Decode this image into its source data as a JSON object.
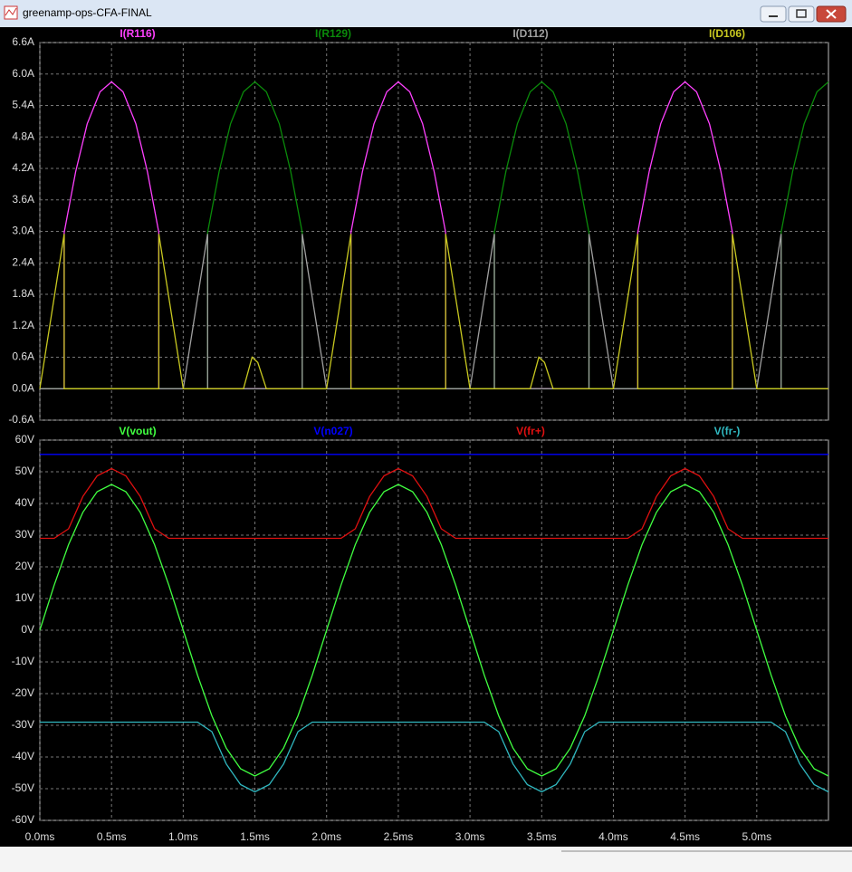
{
  "window": {
    "title": "greenamp-ops-CFA-FINAL"
  },
  "chart_data": [
    {
      "type": "line",
      "xlim": [
        0,
        5.5
      ],
      "ylim": [
        -0.6,
        6.6
      ],
      "yticks": [
        {
          "value": -0.6,
          "label": "-0.6A"
        },
        {
          "value": 0,
          "label": "0.0A"
        },
        {
          "value": 0.6,
          "label": "0.6A"
        },
        {
          "value": 1.2,
          "label": "1.2A"
        },
        {
          "value": 1.8,
          "label": "1.8A"
        },
        {
          "value": 2.4,
          "label": "2.4A"
        },
        {
          "value": 3.0,
          "label": "3.0A"
        },
        {
          "value": 3.6,
          "label": "3.6A"
        },
        {
          "value": 4.2,
          "label": "4.2A"
        },
        {
          "value": 4.8,
          "label": "4.8A"
        },
        {
          "value": 5.4,
          "label": "5.4A"
        },
        {
          "value": 6.0,
          "label": "6.0A"
        },
        {
          "value": 6.6,
          "label": "6.6A"
        }
      ],
      "grid": true,
      "series": [
        {
          "name": "I(R116)",
          "color": "#ff40ff",
          "x": [
            0,
            0.17,
            0.17,
            0.25,
            0.33,
            0.42,
            0.5,
            0.58,
            0.67,
            0.75,
            0.83,
            0.83,
            2.17,
            2.17,
            2.25,
            2.33,
            2.42,
            2.5,
            2.58,
            2.67,
            2.75,
            2.83,
            2.83,
            4.17,
            4.17,
            4.25,
            4.33,
            4.42,
            4.5,
            4.58,
            4.67,
            4.75,
            4.83,
            4.83,
            5.5
          ],
          "values": [
            0,
            0,
            2.98,
            4.14,
            5.05,
            5.66,
            5.85,
            5.66,
            5.05,
            4.14,
            2.98,
            0,
            0,
            2.98,
            4.14,
            5.05,
            5.66,
            5.85,
            5.66,
            5.05,
            4.14,
            2.98,
            0,
            0,
            2.98,
            4.14,
            5.05,
            5.66,
            5.85,
            5.66,
            5.05,
            4.14,
            2.98,
            0,
            0
          ]
        },
        {
          "name": "I(R129)",
          "color": "#0a8a0a",
          "x": [
            0,
            1.17,
            1.17,
            1.25,
            1.33,
            1.42,
            1.5,
            1.58,
            1.67,
            1.75,
            1.83,
            1.83,
            3.17,
            3.17,
            3.25,
            3.33,
            3.42,
            3.5,
            3.58,
            3.67,
            3.75,
            3.83,
            3.83,
            5.17,
            5.17,
            5.25,
            5.33,
            5.42,
            5.5
          ],
          "values": [
            0,
            0,
            2.98,
            4.14,
            5.05,
            5.66,
            5.85,
            5.66,
            5.05,
            4.14,
            2.98,
            0,
            0,
            2.98,
            4.14,
            5.05,
            5.66,
            5.85,
            5.66,
            5.05,
            4.14,
            2.98,
            0,
            0,
            2.98,
            4.14,
            5.05,
            5.66,
            5.85
          ]
        },
        {
          "name": "I(D112)",
          "color": "#a0a0a0",
          "x": [
            0,
            1.0,
            1.17,
            1.17,
            1.83,
            1.83,
            2.0,
            3.0,
            3.17,
            3.17,
            3.83,
            3.83,
            4.0,
            5.0,
            5.17,
            5.17,
            5.5
          ],
          "values": [
            0,
            0,
            2.95,
            0,
            0,
            2.95,
            0,
            0,
            2.95,
            0,
            0,
            2.95,
            0,
            0,
            2.95,
            0,
            0
          ]
        },
        {
          "name": "I(D106)",
          "color": "#c8c820",
          "x": [
            0,
            0.17,
            0.17,
            0.83,
            0.83,
            1.0,
            1.42,
            1.48,
            1.52,
            1.58,
            2.0,
            2.17,
            2.17,
            2.83,
            2.83,
            3.0,
            3.42,
            3.48,
            3.52,
            3.58,
            4.0,
            4.17,
            4.17,
            4.83,
            4.83,
            5.0,
            5.5
          ],
          "values": [
            0,
            2.95,
            0,
            0,
            2.95,
            0,
            0,
            0.6,
            0.5,
            0,
            0,
            2.95,
            0,
            0,
            2.95,
            0,
            0,
            0.6,
            0.5,
            0,
            0,
            2.95,
            0,
            0,
            2.95,
            0,
            0
          ]
        }
      ]
    },
    {
      "type": "line",
      "xlim": [
        0,
        5.5
      ],
      "xticks": [
        {
          "value": 0,
          "label": "0.0ms"
        },
        {
          "value": 0.5,
          "label": "0.5ms"
        },
        {
          "value": 1.0,
          "label": "1.0ms"
        },
        {
          "value": 1.5,
          "label": "1.5ms"
        },
        {
          "value": 2.0,
          "label": "2.0ms"
        },
        {
          "value": 2.5,
          "label": "2.5ms"
        },
        {
          "value": 3.0,
          "label": "3.0ms"
        },
        {
          "value": 3.5,
          "label": "3.5ms"
        },
        {
          "value": 4.0,
          "label": "4.0ms"
        },
        {
          "value": 4.5,
          "label": "4.5ms"
        },
        {
          "value": 5.0,
          "label": "5.0ms"
        }
      ],
      "ylim": [
        -60,
        60
      ],
      "yticks": [
        {
          "value": -60,
          "label": "-60V"
        },
        {
          "value": -50,
          "label": "-50V"
        },
        {
          "value": -40,
          "label": "-40V"
        },
        {
          "value": -30,
          "label": "-30V"
        },
        {
          "value": -20,
          "label": "-20V"
        },
        {
          "value": -10,
          "label": "-10V"
        },
        {
          "value": 0,
          "label": "0V"
        },
        {
          "value": 10,
          "label": "10V"
        },
        {
          "value": 20,
          "label": "20V"
        },
        {
          "value": 30,
          "label": "30V"
        },
        {
          "value": 40,
          "label": "40V"
        },
        {
          "value": 50,
          "label": "50V"
        },
        {
          "value": 60,
          "label": "60V"
        }
      ],
      "grid": true,
      "x": [
        0,
        0.1,
        0.2,
        0.3,
        0.4,
        0.5,
        0.6,
        0.7,
        0.8,
        0.9,
        1.0,
        1.1,
        1.2,
        1.3,
        1.4,
        1.5,
        1.6,
        1.7,
        1.8,
        1.9,
        2.0,
        2.1,
        2.2,
        2.3,
        2.4,
        2.5,
        2.6,
        2.7,
        2.8,
        2.9,
        3.0,
        3.1,
        3.2,
        3.3,
        3.4,
        3.5,
        3.6,
        3.7,
        3.8,
        3.9,
        4.0,
        4.1,
        4.2,
        4.3,
        4.4,
        4.5,
        4.6,
        4.7,
        4.8,
        4.9,
        5.0,
        5.1,
        5.2,
        5.3,
        5.4,
        5.5
      ],
      "series": [
        {
          "name": "V(vout)",
          "color": "#40ff40",
          "values": [
            0,
            14.2,
            27,
            37.2,
            43.7,
            46,
            43.7,
            37.2,
            27,
            14.2,
            0,
            -14.2,
            -27,
            -37.2,
            -43.7,
            -46,
            -43.7,
            -37.2,
            -27,
            -14.2,
            0,
            14.2,
            27,
            37.2,
            43.7,
            46,
            43.7,
            37.2,
            27,
            14.2,
            0,
            -14.2,
            -27,
            -37.2,
            -43.7,
            -46,
            -43.7,
            -37.2,
            -27,
            -14.2,
            0,
            14.2,
            27,
            37.2,
            43.7,
            46,
            43.7,
            37.2,
            27,
            14.2,
            0,
            -14.2,
            -27,
            -37.2,
            -43.7,
            -46
          ]
        },
        {
          "name": "V(n027)",
          "color": "#0000ff",
          "values": [
            55.5,
            55.5,
            55.5,
            55.5,
            55.5,
            55.5,
            55.5,
            55.5,
            55.5,
            55.5,
            55.5,
            55.5,
            55.5,
            55.5,
            55.5,
            55.5,
            55.5,
            55.5,
            55.5,
            55.5,
            55.5,
            55.5,
            55.5,
            55.5,
            55.5,
            55.5,
            55.5,
            55.5,
            55.5,
            55.5,
            55.5,
            55.5,
            55.5,
            55.5,
            55.5,
            55.5,
            55.5,
            55.5,
            55.5,
            55.5,
            55.5,
            55.5,
            55.5,
            55.5,
            55.5,
            55.5,
            55.5,
            55.5,
            55.5,
            55.5,
            55.5,
            55.5,
            55.5,
            55.5,
            55.5,
            55.5
          ]
        },
        {
          "name": "V(fr+)",
          "color": "#e01010",
          "values": [
            29,
            29,
            32,
            42.2,
            48.7,
            51,
            48.7,
            42.2,
            32,
            29,
            29,
            29,
            29,
            29,
            29,
            29,
            29,
            29,
            29,
            29,
            29,
            29,
            32,
            42.2,
            48.7,
            51,
            48.7,
            42.2,
            32,
            29,
            29,
            29,
            29,
            29,
            29,
            29,
            29,
            29,
            29,
            29,
            29,
            29,
            32,
            42.2,
            48.7,
            51,
            48.7,
            42.2,
            32,
            29,
            29,
            29,
            29,
            29,
            29,
            29
          ]
        },
        {
          "name": "V(fr-)",
          "color": "#30b8c0",
          "values": [
            -29,
            -29,
            -29,
            -29,
            -29,
            -29,
            -29,
            -29,
            -29,
            -29,
            -29,
            -29,
            -32,
            -42.2,
            -48.7,
            -51,
            -48.7,
            -42.2,
            -32,
            -29,
            -29,
            -29,
            -29,
            -29,
            -29,
            -29,
            -29,
            -29,
            -29,
            -29,
            -29,
            -29,
            -32,
            -42.2,
            -48.7,
            -51,
            -48.7,
            -42.2,
            -32,
            -29,
            -29,
            -29,
            -29,
            -29,
            -29,
            -29,
            -29,
            -29,
            -29,
            -29,
            -29,
            -29,
            -32,
            -42.2,
            -48.7,
            -51
          ]
        }
      ]
    }
  ]
}
